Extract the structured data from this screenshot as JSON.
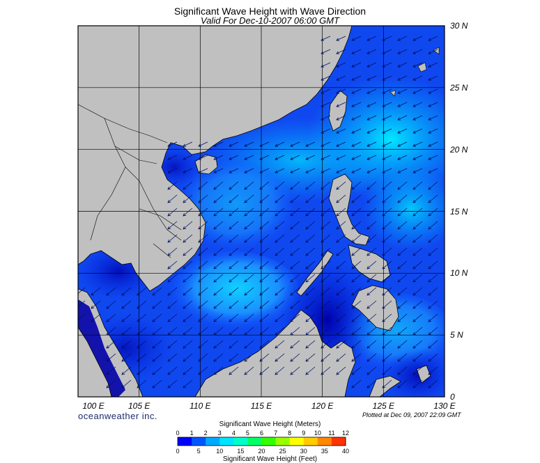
{
  "title": "Significant Wave Height with Wave Direction",
  "subtitle": "Valid For Dec-10-2007 06:00 GMT",
  "lon_labels": [
    "100 E",
    "105 E",
    "110 E",
    "115 E",
    "120 E",
    "125 E",
    "130 E"
  ],
  "lon_values": [
    100,
    105,
    110,
    115,
    120,
    125,
    130
  ],
  "lat_labels": [
    "30 N",
    "25 N",
    "20 N",
    "15 N",
    "10 N",
    "5 N",
    "0"
  ],
  "lat_values": [
    30,
    25,
    20,
    15,
    10,
    5,
    0
  ],
  "brand": "oceanweather inc.",
  "plotted": "Plotted at Dec 09, 2007 22:09 GMT",
  "colorbar": {
    "meters_title": "Significant Wave Height (Meters)",
    "feet_title": "Significant Wave Height (Feet)",
    "meters_ticks": [
      "0",
      "1",
      "2",
      "3",
      "4",
      "5",
      "6",
      "7",
      "8",
      "9",
      "10",
      "11",
      "12"
    ],
    "feet_ticks": [
      "0",
      "5",
      "10",
      "15",
      "20",
      "25",
      "30",
      "35",
      "40"
    ],
    "colors": [
      "#0000ff",
      "#0055ff",
      "#00aaff",
      "#00e5ff",
      "#00ffc8",
      "#00ff66",
      "#33ff00",
      "#99ff00",
      "#ffff00",
      "#ffcc00",
      "#ff8800",
      "#ff3300"
    ]
  },
  "colors": {
    "land": "#c0c0c0",
    "deep": "#0000c8",
    "mid": "#1050ff",
    "high": "#00d8ff"
  },
  "chart_data": {
    "type": "heatmap",
    "x_range": [
      100,
      130
    ],
    "y_range": [
      0,
      30
    ],
    "xlabel": "",
    "ylabel": "",
    "wave_direction": "from northeast toward southwest",
    "max_significant_wave_height_m": 3
  }
}
